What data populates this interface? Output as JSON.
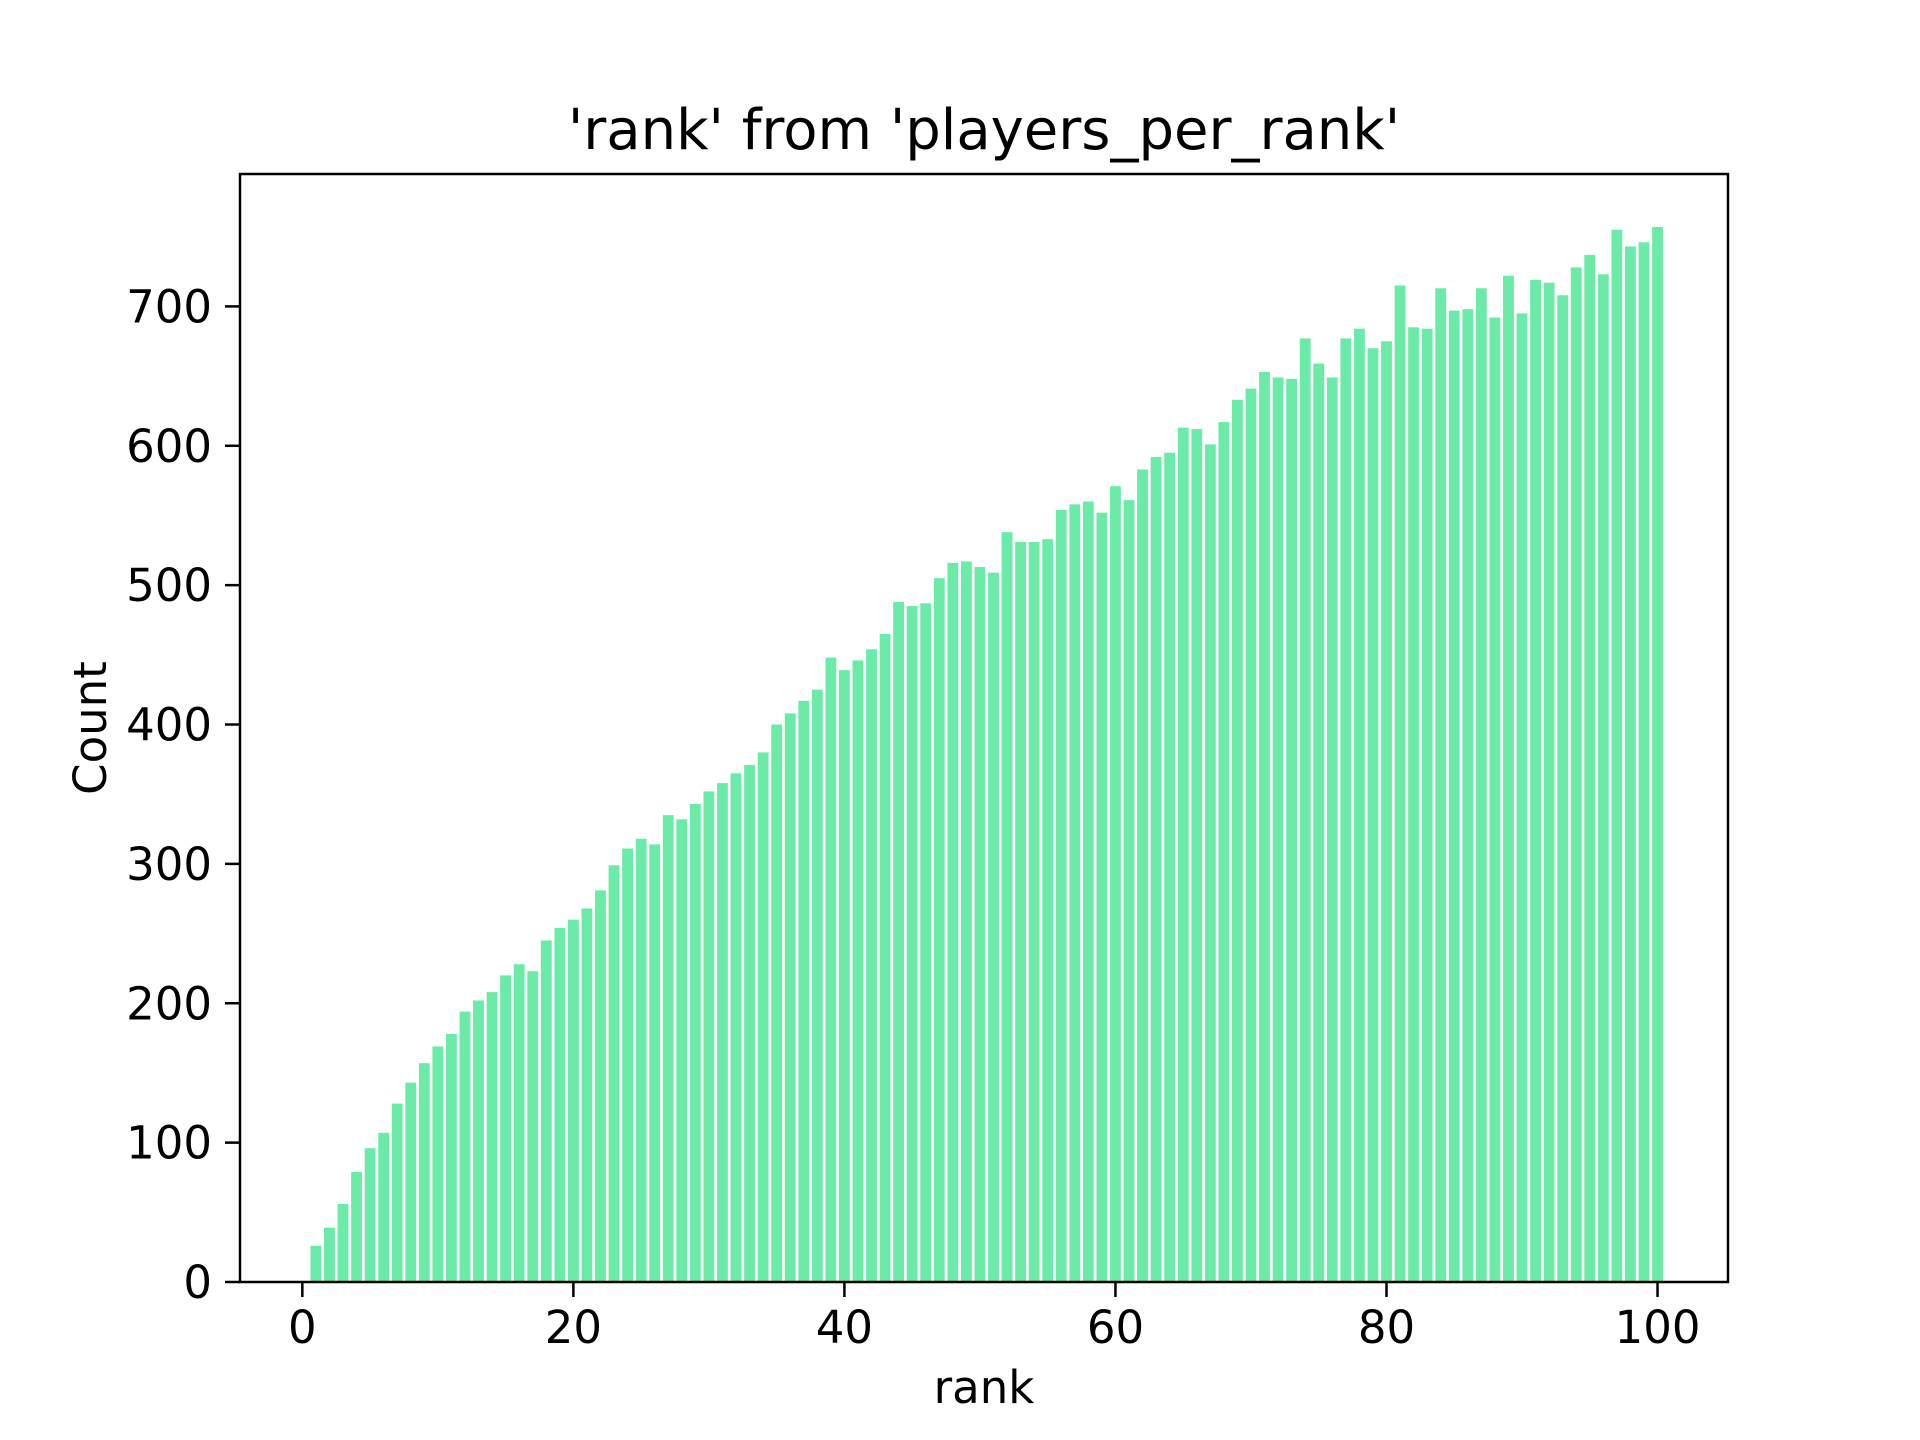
{
  "figure": {
    "background": "#ffffff",
    "title": "'rank' from 'players_per_rank'",
    "xlabel": "rank",
    "ylabel": "Count"
  },
  "chart_data": {
    "type": "bar",
    "title": "'rank' from 'players_per_rank'",
    "xlabel": "rank",
    "ylabel": "Count",
    "bar_color": "#6ceba8",
    "background_color": "#ffffff",
    "grid": false,
    "legend": false,
    "xlim": [
      -4.6,
      105.2
    ],
    "ylim": [
      0,
      795
    ],
    "xticks": [
      0,
      20,
      40,
      60,
      80,
      100
    ],
    "yticks": [
      0,
      100,
      200,
      300,
      400,
      500,
      600,
      700
    ],
    "bar_width_fraction": 0.8,
    "x": [
      1,
      2,
      3,
      4,
      5,
      6,
      7,
      8,
      9,
      10,
      11,
      12,
      13,
      14,
      15,
      16,
      17,
      18,
      19,
      20,
      21,
      22,
      23,
      24,
      25,
      26,
      27,
      28,
      29,
      30,
      31,
      32,
      33,
      34,
      35,
      36,
      37,
      38,
      39,
      40,
      41,
      42,
      43,
      44,
      45,
      46,
      47,
      48,
      49,
      50,
      51,
      52,
      53,
      54,
      55,
      56,
      57,
      58,
      59,
      60,
      61,
      62,
      63,
      64,
      65,
      66,
      67,
      68,
      69,
      70,
      71,
      72,
      73,
      74,
      75,
      76,
      77,
      78,
      79,
      80,
      81,
      82,
      83,
      84,
      85,
      86,
      87,
      88,
      89,
      90,
      91,
      92,
      93,
      94,
      95,
      96,
      97,
      98,
      99,
      100
    ],
    "values": [
      26,
      39,
      56,
      79,
      96,
      107,
      128,
      143,
      157,
      169,
      178,
      194,
      202,
      208,
      220,
      228,
      223,
      245,
      254,
      260,
      268,
      281,
      299,
      311,
      318,
      314,
      335,
      332,
      343,
      352,
      358,
      365,
      371,
      380,
      400,
      408,
      417,
      425,
      448,
      439,
      446,
      454,
      465,
      488,
      485,
      487,
      505,
      516,
      517,
      513,
      509,
      538,
      531,
      531,
      533,
      554,
      558,
      560,
      552,
      571,
      561,
      583,
      592,
      595,
      613,
      612,
      601,
      617,
      633,
      641,
      653,
      649,
      648,
      677,
      659,
      649,
      677,
      684,
      670,
      675,
      715,
      685,
      684,
      713,
      697,
      698,
      713,
      692,
      722,
      695,
      719,
      717,
      708,
      728,
      737,
      723,
      755,
      743,
      746,
      757
    ]
  }
}
